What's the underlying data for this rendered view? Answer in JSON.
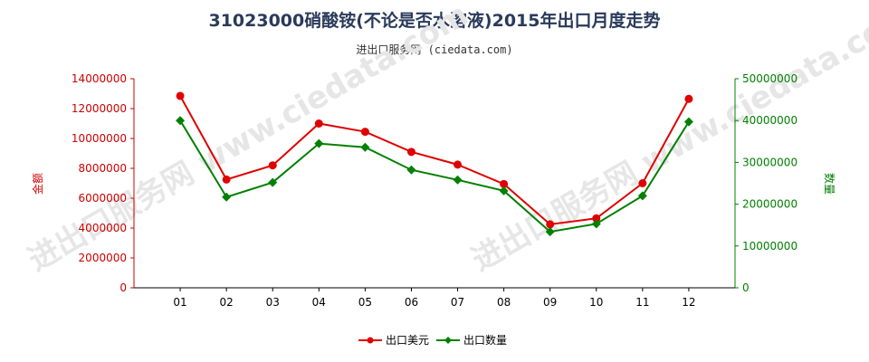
{
  "title": "31023000硝酸铵(不论是否水溶液)2015年出口月度走势",
  "subtitle": "进出口服务网 (ciedata.com)",
  "watermark": "进出口服务网 www.ciedata.com",
  "colors": {
    "series1": "#e00000",
    "series2": "#008000",
    "left_axis": "#cc0000",
    "right_axis": "#008000"
  },
  "chart_data": {
    "type": "line",
    "title": "31023000硝酸铵(不论是否水溶液)2015年出口月度走势",
    "categories": [
      "01",
      "02",
      "03",
      "04",
      "05",
      "06",
      "07",
      "08",
      "09",
      "10",
      "11",
      "12"
    ],
    "left_axis": {
      "label": "金额",
      "ylim": [
        0,
        14000000
      ],
      "ticks": [
        "0",
        "2000000",
        "4000000",
        "6000000",
        "8000000",
        "10000000",
        "12000000",
        "14000000"
      ]
    },
    "right_axis": {
      "label": "数量",
      "ylim": [
        0,
        50000000
      ],
      "ticks": [
        "0",
        "10000000",
        "20000000",
        "30000000",
        "40000000",
        "50000000"
      ]
    },
    "series": [
      {
        "name": "出口美元",
        "axis": "left",
        "marker": "circle",
        "values": [
          12850000,
          7250000,
          8200000,
          11000000,
          10450000,
          9100000,
          8250000,
          6950000,
          4250000,
          4650000,
          7000000,
          12650000
        ]
      },
      {
        "name": "出口数量",
        "axis": "right",
        "marker": "diamond",
        "values": [
          40000000,
          21700000,
          25200000,
          34500000,
          33600000,
          28200000,
          25800000,
          23200000,
          13400000,
          15300000,
          22000000,
          39700000
        ]
      }
    ],
    "legend_position": "bottom",
    "grid": false
  }
}
